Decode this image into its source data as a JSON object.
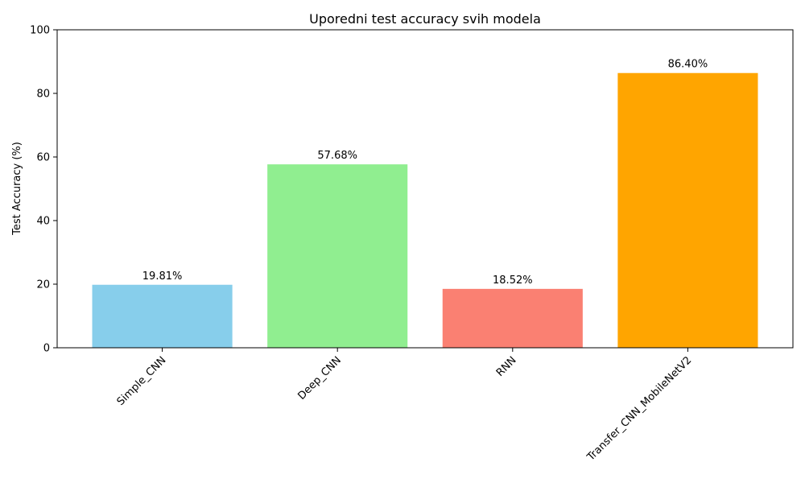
{
  "chart_data": {
    "type": "bar",
    "title": "Uporedni test accuracy svih modela",
    "xlabel": "",
    "ylabel": "Test Accuracy (%)",
    "ylim": [
      0,
      100
    ],
    "yticks": [
      0,
      20,
      40,
      60,
      80,
      100
    ],
    "grid": false,
    "legend": "none",
    "categories": [
      "Simple_CNN",
      "Deep_CNN",
      "RNN",
      "Transfer_CNN_MobileNetV2"
    ],
    "values": [
      19.81,
      57.68,
      18.52,
      86.4
    ],
    "data_labels": [
      "19.81%",
      "57.68%",
      "18.52%",
      "86.40%"
    ],
    "colors": [
      "#87ceeb",
      "#90ee90",
      "#fa8072",
      "#ffa500"
    ]
  }
}
